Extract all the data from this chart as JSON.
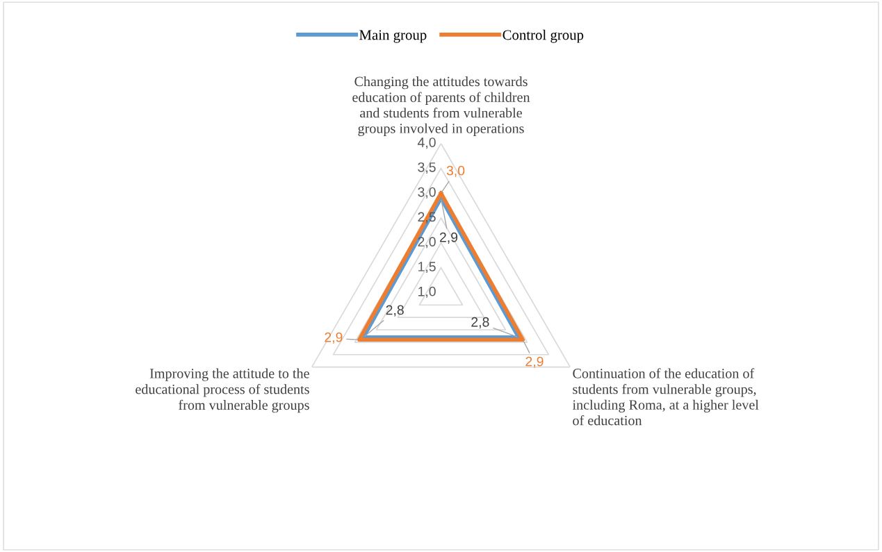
{
  "chart_data": {
    "type": "radar",
    "categories": [
      "Changing the attitudes towards education of parents of children and students from vulnerable groups involved in operations",
      "Continuation of the education of students from vulnerable groups, including Roma, at a higher level of education",
      "Improving the attitude to the educational process of students from vulnerable groups"
    ],
    "series": [
      {
        "name": "Main group",
        "color": "#5b9bd5",
        "values": [
          2.9,
          2.8,
          2.8
        ],
        "value_labels": [
          "2,9",
          "2,8",
          "2,8"
        ]
      },
      {
        "name": "Control group",
        "color": "#ed7d31",
        "values": [
          3.0,
          2.9,
          2.9
        ],
        "value_labels": [
          "3,0",
          "2,9",
          "2,9"
        ]
      }
    ],
    "ylim": [
      1.0,
      4.0
    ],
    "yticks": [
      {
        "value": 1.0,
        "label": "1,0"
      },
      {
        "value": 1.5,
        "label": "1,5"
      },
      {
        "value": 2.0,
        "label": "2,0"
      },
      {
        "value": 2.5,
        "label": "2,5"
      },
      {
        "value": 3.0,
        "label": "3,0"
      },
      {
        "value": 3.5,
        "label": "3,5"
      },
      {
        "value": 4.0,
        "label": "4,0"
      }
    ],
    "grid": true,
    "legend": "top"
  }
}
